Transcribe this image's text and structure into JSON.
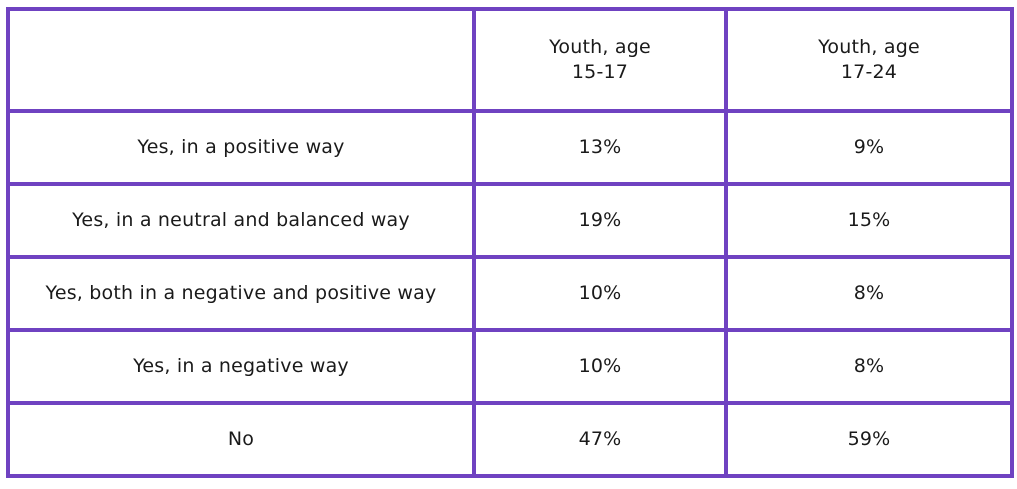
{
  "table": {
    "header": {
      "corner": "",
      "columns": [
        "Youth, age\n15-17",
        "Youth, age\n17-24"
      ]
    },
    "rows": [
      {
        "label": "Yes, in a positive way",
        "values": [
          "13%",
          "9%"
        ]
      },
      {
        "label": "Yes, in a neutral and balanced way",
        "values": [
          "19%",
          "15%"
        ]
      },
      {
        "label": "Yes, both in a negative and positive way",
        "values": [
          "10%",
          "8%"
        ]
      },
      {
        "label": "Yes, in a negative way",
        "values": [
          "10%",
          "8%"
        ]
      },
      {
        "label": "No",
        "values": [
          "47%",
          "59%"
        ]
      }
    ],
    "border_color": "#6f42c1"
  }
}
